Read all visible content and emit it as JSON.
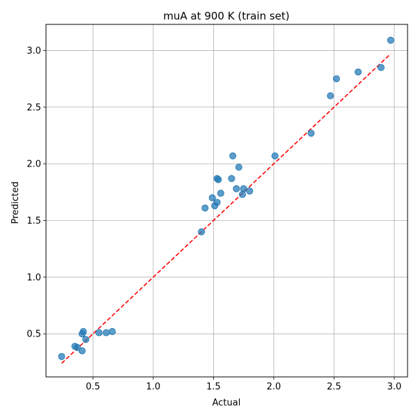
{
  "chart_data": {
    "type": "scatter",
    "title": "muA at 900 K (train set)",
    "xlabel": "Actual",
    "ylabel": "Predicted",
    "xlim": [
      0.11,
      3.11
    ],
    "ylim": [
      0.12,
      3.23
    ],
    "xticks": [
      0.5,
      1.0,
      1.5,
      2.0,
      2.5,
      3.0
    ],
    "xtick_labels": [
      "0.5",
      "1.0",
      "1.5",
      "2.0",
      "2.5",
      "3.0"
    ],
    "yticks": [
      0.5,
      1.0,
      1.5,
      2.0,
      2.5,
      3.0
    ],
    "ytick_labels": [
      "0.5",
      "1.0",
      "1.5",
      "2.0",
      "2.5",
      "3.0"
    ],
    "grid": true,
    "point_color": "#1f77b4",
    "reference_line": {
      "style": "dashed",
      "color": "#ff0000",
      "from": [
        0.24,
        0.24
      ],
      "to": [
        2.97,
        2.97
      ]
    },
    "points": [
      {
        "x": 0.24,
        "y": 0.3
      },
      {
        "x": 0.35,
        "y": 0.39
      },
      {
        "x": 0.37,
        "y": 0.38
      },
      {
        "x": 0.41,
        "y": 0.35
      },
      {
        "x": 0.41,
        "y": 0.5
      },
      {
        "x": 0.42,
        "y": 0.52
      },
      {
        "x": 0.44,
        "y": 0.45
      },
      {
        "x": 0.55,
        "y": 0.51
      },
      {
        "x": 0.61,
        "y": 0.51
      },
      {
        "x": 0.66,
        "y": 0.52
      },
      {
        "x": 1.4,
        "y": 1.4
      },
      {
        "x": 1.43,
        "y": 1.61
      },
      {
        "x": 1.49,
        "y": 1.7
      },
      {
        "x": 1.51,
        "y": 1.63
      },
      {
        "x": 1.53,
        "y": 1.66
      },
      {
        "x": 1.53,
        "y": 1.87
      },
      {
        "x": 1.54,
        "y": 1.86
      },
      {
        "x": 1.56,
        "y": 1.74
      },
      {
        "x": 1.65,
        "y": 1.87
      },
      {
        "x": 1.66,
        "y": 2.07
      },
      {
        "x": 1.69,
        "y": 1.78
      },
      {
        "x": 1.71,
        "y": 1.97
      },
      {
        "x": 1.74,
        "y": 1.73
      },
      {
        "x": 1.75,
        "y": 1.78
      },
      {
        "x": 1.8,
        "y": 1.76
      },
      {
        "x": 2.01,
        "y": 2.07
      },
      {
        "x": 2.31,
        "y": 2.27
      },
      {
        "x": 2.47,
        "y": 2.6
      },
      {
        "x": 2.52,
        "y": 2.75
      },
      {
        "x": 2.7,
        "y": 2.81
      },
      {
        "x": 2.89,
        "y": 2.85
      },
      {
        "x": 2.97,
        "y": 3.09
      }
    ]
  }
}
